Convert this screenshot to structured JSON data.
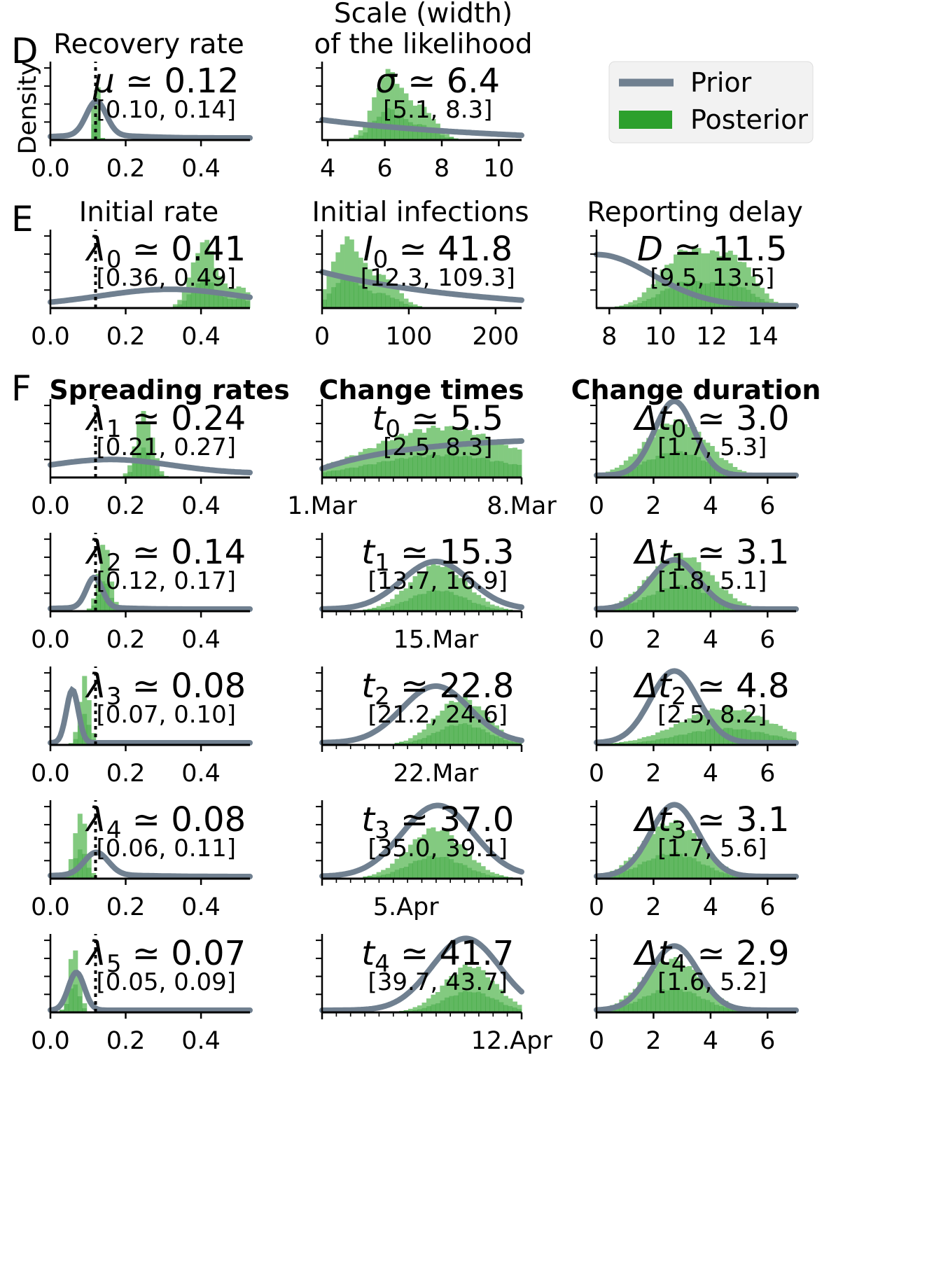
{
  "colors": {
    "prior": "#708090",
    "posterior": "#2ca02c",
    "posterior_light": "#a6dba0",
    "marker": "#000000"
  },
  "legend": {
    "prior": "Prior",
    "posterior": "Posterior"
  },
  "ylabel": "Density",
  "panels": {
    "D": "D",
    "E": "E",
    "F": "F"
  },
  "col_titles": {
    "spreading": "Spreading rates",
    "change_times": "Change times",
    "change_duration": "Change duration"
  },
  "chart_data": [
    {
      "type": "histogram",
      "title": "Recovery rate",
      "panel": "D",
      "param": "μ",
      "sub": "",
      "value": "0.12",
      "ci": "[0.10, 0.14]",
      "xticks": [
        "0.0",
        "0.2",
        "0.4"
      ],
      "xlim": [
        0,
        0.53
      ],
      "xtick_values": [
        0,
        0.2,
        0.4
      ],
      "marker_line": 0.12
    },
    {
      "type": "histogram",
      "title": "Scale (width)|of the likelihood",
      "panel": "D",
      "param": "σ",
      "sub": "",
      "value": "6.4",
      "ci": "[5.1, 8.3]",
      "xticks": [
        "4",
        "6",
        "8",
        "10"
      ],
      "xlim": [
        3.8,
        10.8
      ],
      "xtick_values": [
        4,
        6,
        8,
        10
      ]
    },
    {
      "type": "histogram",
      "title": "Initial rate",
      "panel": "E",
      "param": "λ",
      "sub": "0",
      "value": "0.41",
      "ci": "[0.36, 0.49]",
      "xticks": [
        "0.0",
        "0.2",
        "0.4"
      ],
      "xlim": [
        0,
        0.53
      ],
      "xtick_values": [
        0,
        0.2,
        0.4
      ],
      "marker_line": 0.12
    },
    {
      "type": "histogram",
      "title": "Initial infections",
      "param": "I",
      "sub": "0",
      "value": "41.8",
      "ci": "[12.3, 109.3]",
      "xticks": [
        "0",
        "100",
        "200"
      ],
      "xlim": [
        0,
        230
      ],
      "xtick_values": [
        0,
        100,
        200
      ]
    },
    {
      "type": "histogram",
      "title": "Reporting delay",
      "param": "D",
      "sub": "",
      "value": "11.5",
      "ci": "[9.5, 13.5]",
      "xticks": [
        "8",
        "10",
        "12",
        "14"
      ],
      "xlim": [
        7.5,
        15.3
      ],
      "xtick_values": [
        8,
        10,
        12,
        14
      ]
    },
    {
      "type": "histogram",
      "param": "λ",
      "sub": "1",
      "value": "0.24",
      "ci": "[0.21, 0.27]",
      "xticks": [
        "0.0",
        "0.2",
        "0.4"
      ],
      "xlim": [
        0,
        0.53
      ],
      "xtick_values": [
        0,
        0.2,
        0.4
      ],
      "marker_line": 0.12
    },
    {
      "type": "histogram",
      "param": "t",
      "sub": "0",
      "value": "5.5",
      "ci": "[2.5, 8.3]",
      "xticks": [
        "1.Mar",
        "8.Mar"
      ],
      "xtick_values": [
        0,
        7
      ]
    },
    {
      "type": "histogram",
      "param": "Δt",
      "sub": "0",
      "value": "3.0",
      "ci": "[1.7, 5.3]",
      "xticks": [
        "0",
        "2",
        "4",
        "6"
      ],
      "xlim": [
        0,
        7
      ],
      "xtick_values": [
        0,
        2,
        4,
        6
      ]
    },
    {
      "type": "histogram",
      "param": "λ",
      "sub": "2",
      "value": "0.14",
      "ci": "[0.12, 0.17]",
      "xticks": [
        "0.0",
        "0.2",
        "0.4"
      ],
      "xlim": [
        0,
        0.53
      ],
      "xtick_values": [
        0,
        0.2,
        0.4
      ],
      "marker_line": 0.12
    },
    {
      "type": "histogram",
      "param": "t",
      "sub": "1",
      "value": "15.3",
      "ci": "[13.7, 16.9]",
      "xticks": [
        "15.Mar"
      ]
    },
    {
      "type": "histogram",
      "param": "Δt",
      "sub": "1",
      "value": "3.1",
      "ci": "[1.8, 5.1]",
      "xticks": [
        "0",
        "2",
        "4",
        "6"
      ],
      "xlim": [
        0,
        7
      ],
      "xtick_values": [
        0,
        2,
        4,
        6
      ]
    },
    {
      "type": "histogram",
      "param": "λ",
      "sub": "3",
      "value": "0.08",
      "ci": "[0.07, 0.10]",
      "xticks": [
        "0.0",
        "0.2",
        "0.4"
      ],
      "xlim": [
        0,
        0.53
      ],
      "xtick_values": [
        0,
        0.2,
        0.4
      ],
      "marker_line": 0.12
    },
    {
      "type": "histogram",
      "param": "t",
      "sub": "2",
      "value": "22.8",
      "ci": "[21.2, 24.6]",
      "xticks": [
        "22.Mar"
      ]
    },
    {
      "type": "histogram",
      "param": "Δt",
      "sub": "2",
      "value": "4.8",
      "ci": "[2.5, 8.2]",
      "xticks": [
        "0",
        "2",
        "4",
        "6"
      ],
      "xlim": [
        0,
        7
      ],
      "xtick_values": [
        0,
        2,
        4,
        6
      ]
    },
    {
      "type": "histogram",
      "param": "λ",
      "sub": "4",
      "value": "0.08",
      "ci": "[0.06, 0.11]",
      "xticks": [
        "0.0",
        "0.2",
        "0.4"
      ],
      "xlim": [
        0,
        0.53
      ],
      "xtick_values": [
        0,
        0.2,
        0.4
      ],
      "marker_line": 0.12
    },
    {
      "type": "histogram",
      "param": "t",
      "sub": "3",
      "value": "37.0",
      "ci": "[35.0, 39.1]",
      "xticks": [
        "5.Apr"
      ]
    },
    {
      "type": "histogram",
      "param": "Δt",
      "sub": "3",
      "value": "3.1",
      "ci": "[1.7, 5.6]",
      "xticks": [
        "0",
        "2",
        "4",
        "6"
      ],
      "xlim": [
        0,
        7
      ],
      "xtick_values": [
        0,
        2,
        4,
        6
      ]
    },
    {
      "type": "histogram",
      "param": "λ",
      "sub": "5",
      "value": "0.07",
      "ci": "[0.05, 0.09]",
      "xticks": [
        "0.0",
        "0.2",
        "0.4"
      ],
      "xlim": [
        0,
        0.53
      ],
      "xtick_values": [
        0,
        0.2,
        0.4
      ],
      "marker_line": 0.12
    },
    {
      "type": "histogram",
      "param": "t",
      "sub": "4",
      "value": "41.7",
      "ci": "[39.7, 43.7]",
      "xticks": [
        "12.Apr"
      ]
    },
    {
      "type": "histogram",
      "param": "Δt",
      "sub": "4",
      "value": "2.9",
      "ci": "[1.6, 5.2]",
      "xticks": [
        "0",
        "2",
        "4",
        "6"
      ],
      "xlim": [
        0,
        7
      ],
      "xtick_values": [
        0,
        2,
        4,
        6
      ]
    }
  ]
}
